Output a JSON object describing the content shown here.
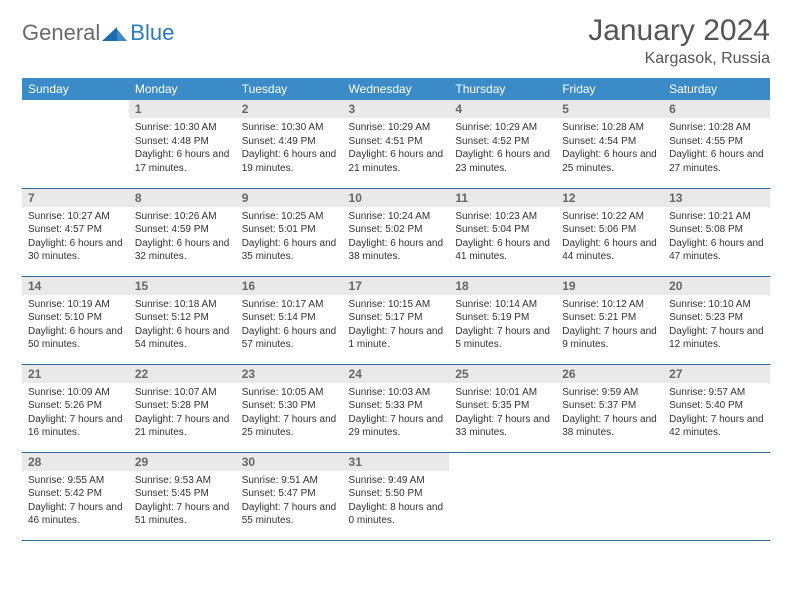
{
  "brand": {
    "word1": "General",
    "word2": "Blue"
  },
  "title": "January 2024",
  "location": "Kargasok, Russia",
  "colors": {
    "header_bg": "#3b8bc8",
    "header_text": "#ffffff",
    "daynum_bg": "#e9e9e9",
    "daynum_text": "#666666",
    "row_border": "#2a6aa0",
    "body_text": "#333333",
    "logo_gray": "#6a6a6a",
    "logo_blue": "#2a7bbf"
  },
  "dow": [
    "Sunday",
    "Monday",
    "Tuesday",
    "Wednesday",
    "Thursday",
    "Friday",
    "Saturday"
  ],
  "weeks": [
    [
      null,
      {
        "n": "1",
        "sr": "10:30 AM",
        "ss": "4:48 PM",
        "dl": "6 hours and 17 minutes."
      },
      {
        "n": "2",
        "sr": "10:30 AM",
        "ss": "4:49 PM",
        "dl": "6 hours and 19 minutes."
      },
      {
        "n": "3",
        "sr": "10:29 AM",
        "ss": "4:51 PM",
        "dl": "6 hours and 21 minutes."
      },
      {
        "n": "4",
        "sr": "10:29 AM",
        "ss": "4:52 PM",
        "dl": "6 hours and 23 minutes."
      },
      {
        "n": "5",
        "sr": "10:28 AM",
        "ss": "4:54 PM",
        "dl": "6 hours and 25 minutes."
      },
      {
        "n": "6",
        "sr": "10:28 AM",
        "ss": "4:55 PM",
        "dl": "6 hours and 27 minutes."
      }
    ],
    [
      {
        "n": "7",
        "sr": "10:27 AM",
        "ss": "4:57 PM",
        "dl": "6 hours and 30 minutes."
      },
      {
        "n": "8",
        "sr": "10:26 AM",
        "ss": "4:59 PM",
        "dl": "6 hours and 32 minutes."
      },
      {
        "n": "9",
        "sr": "10:25 AM",
        "ss": "5:01 PM",
        "dl": "6 hours and 35 minutes."
      },
      {
        "n": "10",
        "sr": "10:24 AM",
        "ss": "5:02 PM",
        "dl": "6 hours and 38 minutes."
      },
      {
        "n": "11",
        "sr": "10:23 AM",
        "ss": "5:04 PM",
        "dl": "6 hours and 41 minutes."
      },
      {
        "n": "12",
        "sr": "10:22 AM",
        "ss": "5:06 PM",
        "dl": "6 hours and 44 minutes."
      },
      {
        "n": "13",
        "sr": "10:21 AM",
        "ss": "5:08 PM",
        "dl": "6 hours and 47 minutes."
      }
    ],
    [
      {
        "n": "14",
        "sr": "10:19 AM",
        "ss": "5:10 PM",
        "dl": "6 hours and 50 minutes."
      },
      {
        "n": "15",
        "sr": "10:18 AM",
        "ss": "5:12 PM",
        "dl": "6 hours and 54 minutes."
      },
      {
        "n": "16",
        "sr": "10:17 AM",
        "ss": "5:14 PM",
        "dl": "6 hours and 57 minutes."
      },
      {
        "n": "17",
        "sr": "10:15 AM",
        "ss": "5:17 PM",
        "dl": "7 hours and 1 minute."
      },
      {
        "n": "18",
        "sr": "10:14 AM",
        "ss": "5:19 PM",
        "dl": "7 hours and 5 minutes."
      },
      {
        "n": "19",
        "sr": "10:12 AM",
        "ss": "5:21 PM",
        "dl": "7 hours and 9 minutes."
      },
      {
        "n": "20",
        "sr": "10:10 AM",
        "ss": "5:23 PM",
        "dl": "7 hours and 12 minutes."
      }
    ],
    [
      {
        "n": "21",
        "sr": "10:09 AM",
        "ss": "5:26 PM",
        "dl": "7 hours and 16 minutes."
      },
      {
        "n": "22",
        "sr": "10:07 AM",
        "ss": "5:28 PM",
        "dl": "7 hours and 21 minutes."
      },
      {
        "n": "23",
        "sr": "10:05 AM",
        "ss": "5:30 PM",
        "dl": "7 hours and 25 minutes."
      },
      {
        "n": "24",
        "sr": "10:03 AM",
        "ss": "5:33 PM",
        "dl": "7 hours and 29 minutes."
      },
      {
        "n": "25",
        "sr": "10:01 AM",
        "ss": "5:35 PM",
        "dl": "7 hours and 33 minutes."
      },
      {
        "n": "26",
        "sr": "9:59 AM",
        "ss": "5:37 PM",
        "dl": "7 hours and 38 minutes."
      },
      {
        "n": "27",
        "sr": "9:57 AM",
        "ss": "5:40 PM",
        "dl": "7 hours and 42 minutes."
      }
    ],
    [
      {
        "n": "28",
        "sr": "9:55 AM",
        "ss": "5:42 PM",
        "dl": "7 hours and 46 minutes."
      },
      {
        "n": "29",
        "sr": "9:53 AM",
        "ss": "5:45 PM",
        "dl": "7 hours and 51 minutes."
      },
      {
        "n": "30",
        "sr": "9:51 AM",
        "ss": "5:47 PM",
        "dl": "7 hours and 55 minutes."
      },
      {
        "n": "31",
        "sr": "9:49 AM",
        "ss": "5:50 PM",
        "dl": "8 hours and 0 minutes."
      },
      null,
      null,
      null
    ]
  ],
  "labels": {
    "sunrise": "Sunrise:",
    "sunset": "Sunset:",
    "daylight": "Daylight:"
  }
}
